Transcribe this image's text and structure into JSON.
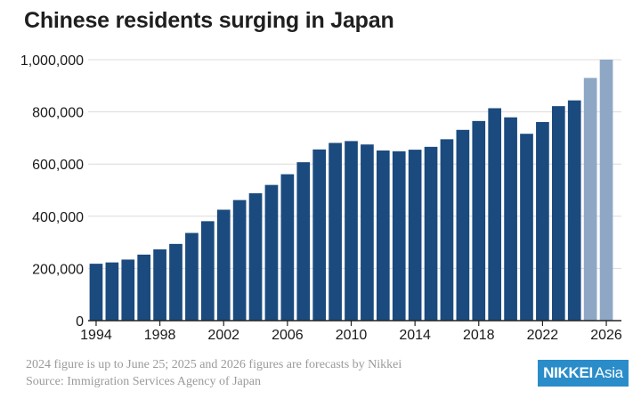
{
  "header": {
    "title": "Chinese residents surging in Japan"
  },
  "footer": {
    "note": "2024 figure is up to June 25; 2025 and 2026 figures are forecasts by Nikkei",
    "source": "Source: Immigration Services Agency of Japan"
  },
  "logo": {
    "part1": "NIKKEI",
    "part2": "Asia"
  },
  "chart_data": {
    "type": "bar",
    "title": "Chinese residents surging in Japan",
    "xlabel": "",
    "ylabel": "",
    "ylim": [
      0,
      1000000
    ],
    "yticks": [
      0,
      200000,
      400000,
      600000,
      800000,
      1000000
    ],
    "ytick_labels": [
      "0",
      "200,000",
      "400,000",
      "600,000",
      "800,000",
      "1,000,000"
    ],
    "xtick_labels": [
      "1994",
      "1998",
      "2002",
      "2006",
      "2010",
      "2014",
      "2018",
      "2022",
      "2026"
    ],
    "grid": true,
    "legend": "none",
    "colors": {
      "actual": "#1b4a7e",
      "forecast": "#8ea7c4",
      "grid": "#dcdcdc",
      "axis": "#222222"
    },
    "categories": [
      "1994",
      "1995",
      "1996",
      "1997",
      "1998",
      "1999",
      "2000",
      "2001",
      "2002",
      "2003",
      "2004",
      "2005",
      "2006",
      "2007",
      "2008",
      "2009",
      "2010",
      "2011",
      "2012",
      "2013",
      "2014",
      "2015",
      "2016",
      "2017",
      "2018",
      "2019",
      "2020",
      "2021",
      "2022",
      "2023",
      "2024",
      "2025",
      "2026"
    ],
    "values": [
      218000,
      223000,
      234000,
      253000,
      273000,
      294000,
      336000,
      381000,
      425000,
      462000,
      488000,
      520000,
      561000,
      607000,
      656000,
      681000,
      688000,
      675000,
      652000,
      649000,
      655000,
      666000,
      695000,
      731000,
      765000,
      814000,
      779000,
      716000,
      761000,
      822000,
      844000,
      930000,
      1000000
    ],
    "forecast": [
      "2025",
      "2026"
    ]
  }
}
